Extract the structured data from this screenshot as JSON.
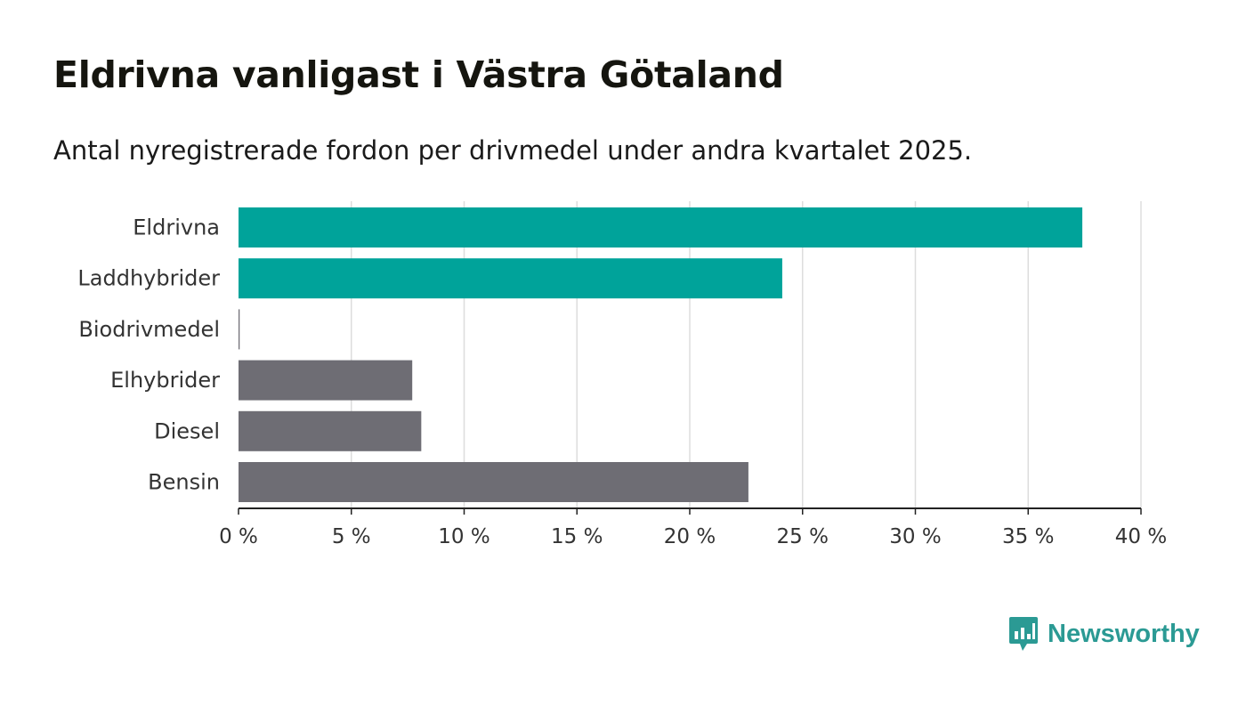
{
  "title": "Eldrivna vanligast i Västra Götaland",
  "subtitle": "Antal nyregistrerade fordon per drivmedel under andra kvartalet 2025.",
  "brand": {
    "name": "Newsworthy",
    "color": "#2b9a94",
    "icon": "bar-chart-speech-bubble-icon"
  },
  "colors": {
    "highlight": "#00a39a",
    "neutral": "#6e6d74",
    "grid": "#dddddd",
    "axis": "#222222"
  },
  "chart_data": {
    "type": "bar",
    "orientation": "horizontal",
    "categories": [
      "Eldrivna",
      "Laddhybrider",
      "Biodrivmedel",
      "Elhybrider",
      "Diesel",
      "Bensin"
    ],
    "values": [
      37.4,
      24.1,
      0.05,
      7.7,
      8.1,
      22.6
    ],
    "highlighted": [
      true,
      true,
      false,
      false,
      false,
      false
    ],
    "xlim": [
      0,
      40
    ],
    "xticks": [
      0,
      5,
      10,
      15,
      20,
      25,
      30,
      35,
      40
    ],
    "xtick_labels": [
      "0 %",
      "5 %",
      "10 %",
      "15 %",
      "20 %",
      "25 %",
      "30 %",
      "35 %",
      "40 %"
    ],
    "grid": true
  }
}
